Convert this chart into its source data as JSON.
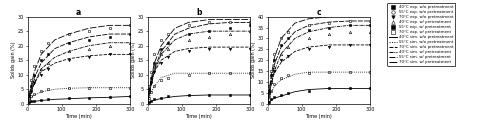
{
  "panel_titles": [
    "a",
    "b",
    "c"
  ],
  "xlabel": "Time (min)",
  "ylabel": "Solids gain (%)",
  "xlim": [
    0,
    300
  ],
  "ylim_a": [
    0,
    30
  ],
  "ylim_b": [
    0,
    30
  ],
  "ylim_c": [
    0,
    40
  ],
  "yticks_a": [
    0,
    5,
    10,
    15,
    20,
    25,
    30
  ],
  "yticks_b": [
    0,
    5,
    10,
    15,
    20,
    25,
    30
  ],
  "yticks_c": [
    0,
    5,
    10,
    15,
    20,
    25,
    30,
    35,
    40
  ],
  "xticks": [
    0,
    100,
    200,
    300
  ],
  "panel_a": {
    "exp_40_wo": {
      "x": [
        0,
        5,
        10,
        20,
        40,
        60,
        120,
        180,
        240,
        300
      ],
      "y": [
        0,
        0.5,
        0.8,
        1.0,
        1.2,
        1.5,
        1.8,
        2.0,
        2.2,
        2.5
      ]
    },
    "exp_55_wo": {
      "x": [
        0,
        5,
        10,
        20,
        40,
        60,
        120,
        180,
        240,
        300
      ],
      "y": [
        0,
        1.5,
        2.5,
        3.5,
        4.5,
        5.0,
        5.5,
        5.5,
        5.5,
        5.5
      ]
    },
    "exp_70_wo": {
      "x": [
        0,
        5,
        10,
        20,
        40,
        60,
        120,
        180,
        240,
        300
      ],
      "y": [
        0,
        2,
        4,
        7,
        10,
        12,
        15,
        16,
        17,
        17
      ]
    },
    "exp_40_w": {
      "x": [
        0,
        5,
        10,
        20,
        40,
        60,
        120,
        180,
        240,
        300
      ],
      "y": [
        0,
        2,
        5,
        8,
        12,
        14,
        18,
        19,
        20,
        21
      ]
    },
    "exp_55_w": {
      "x": [
        0,
        5,
        10,
        20,
        40,
        60,
        120,
        180,
        240,
        300
      ],
      "y": [
        0,
        3,
        6,
        10,
        15,
        17,
        21,
        22,
        23,
        24
      ]
    },
    "exp_70_w": {
      "x": [
        0,
        5,
        10,
        20,
        40,
        60,
        120,
        180,
        240,
        300
      ],
      "y": [
        0,
        4,
        8,
        13,
        18,
        21,
        24,
        25,
        26,
        27
      ]
    },
    "sim_40_wo": {
      "x": [
        0,
        10,
        20,
        40,
        80,
        120,
        180,
        240,
        300
      ],
      "y": [
        0,
        0.5,
        0.8,
        1.1,
        1.5,
        1.7,
        2.0,
        2.2,
        2.5
      ]
    },
    "sim_55_wo": {
      "x": [
        0,
        10,
        20,
        40,
        80,
        120,
        180,
        240,
        300
      ],
      "y": [
        0,
        2.0,
        3.0,
        4.0,
        5.0,
        5.3,
        5.5,
        5.5,
        5.5
      ]
    },
    "sim_70_wo": {
      "x": [
        0,
        10,
        20,
        40,
        80,
        120,
        180,
        240,
        300
      ],
      "y": [
        0,
        4,
        7,
        11,
        14,
        15.5,
        16.5,
        17,
        17
      ]
    },
    "sim_40_w": {
      "x": [
        0,
        10,
        20,
        40,
        80,
        120,
        180,
        240,
        300
      ],
      "y": [
        0,
        4,
        7,
        12,
        16,
        18,
        20,
        21,
        21
      ]
    },
    "sim_55_w": {
      "x": [
        0,
        10,
        20,
        40,
        80,
        120,
        180,
        240,
        300
      ],
      "y": [
        0,
        5,
        9,
        14,
        19,
        21,
        23,
        24,
        24
      ]
    },
    "sim_70_w": {
      "x": [
        0,
        10,
        20,
        40,
        80,
        120,
        180,
        240,
        300
      ],
      "y": [
        0,
        6,
        11,
        17,
        22,
        24,
        26,
        27,
        27
      ]
    }
  },
  "panel_b": {
    "exp_40_wo": {
      "x": [
        0,
        5,
        10,
        20,
        40,
        60,
        120,
        180,
        240,
        300
      ],
      "y": [
        0,
        0.5,
        1.0,
        1.5,
        2.0,
        2.5,
        3.0,
        3.0,
        3.0,
        3.0
      ]
    },
    "exp_55_wo": {
      "x": [
        0,
        5,
        10,
        20,
        40,
        60,
        120,
        180,
        240,
        300
      ],
      "y": [
        0,
        2,
        4,
        6,
        8,
        9,
        10,
        10.5,
        10.5,
        10.5
      ]
    },
    "exp_70_wo": {
      "x": [
        0,
        5,
        10,
        20,
        40,
        60,
        120,
        180,
        240,
        300
      ],
      "y": [
        0,
        4,
        7,
        11,
        14,
        16,
        18,
        19,
        19,
        19
      ]
    },
    "exp_40_w": {
      "x": [
        0,
        5,
        10,
        20,
        40,
        60,
        120,
        180,
        240,
        300
      ],
      "y": [
        0,
        4,
        8,
        13,
        17,
        19,
        22,
        23,
        24,
        25
      ]
    },
    "exp_55_w": {
      "x": [
        0,
        5,
        10,
        20,
        40,
        60,
        120,
        180,
        240,
        300
      ],
      "y": [
        0,
        5,
        9,
        14,
        19,
        21,
        24,
        25,
        26,
        27
      ]
    },
    "exp_70_w": {
      "x": [
        0,
        5,
        10,
        20,
        40,
        60,
        120,
        180,
        240,
        300
      ],
      "y": [
        0,
        6,
        11,
        17,
        22,
        24,
        27,
        28,
        28,
        28
      ]
    },
    "sim_40_wo": {
      "x": [
        0,
        10,
        20,
        40,
        80,
        120,
        180,
        240,
        300
      ],
      "y": [
        0,
        0.8,
        1.2,
        1.8,
        2.5,
        2.8,
        3.0,
        3.0,
        3.0
      ]
    },
    "sim_55_wo": {
      "x": [
        0,
        10,
        20,
        40,
        80,
        120,
        180,
        240,
        300
      ],
      "y": [
        0,
        4,
        6,
        9,
        10.5,
        10.5,
        10.5,
        10.5,
        10.5
      ]
    },
    "sim_70_wo": {
      "x": [
        0,
        10,
        20,
        40,
        80,
        120,
        180,
        240,
        300
      ],
      "y": [
        0,
        7,
        11,
        15,
        18,
        19,
        19.5,
        19.5,
        19.5
      ]
    },
    "sim_40_w": {
      "x": [
        0,
        10,
        20,
        40,
        80,
        120,
        180,
        240,
        300
      ],
      "y": [
        0,
        6,
        11,
        17,
        22,
        24,
        25,
        25,
        25
      ]
    },
    "sim_55_w": {
      "x": [
        0,
        10,
        20,
        40,
        80,
        120,
        180,
        240,
        300
      ],
      "y": [
        0,
        7,
        12,
        18,
        24,
        26,
        27.5,
        28,
        28
      ]
    },
    "sim_70_w": {
      "x": [
        0,
        10,
        20,
        40,
        80,
        120,
        180,
        240,
        300
      ],
      "y": [
        0,
        8,
        14,
        20,
        26,
        28,
        29,
        29,
        29
      ]
    }
  },
  "panel_c": {
    "exp_40_wo": {
      "x": [
        0,
        5,
        10,
        20,
        40,
        60,
        120,
        180,
        240,
        300
      ],
      "y": [
        0,
        1,
        2,
        3,
        4,
        5,
        6,
        7,
        7,
        7
      ]
    },
    "exp_55_wo": {
      "x": [
        0,
        5,
        10,
        20,
        40,
        60,
        120,
        180,
        240,
        300
      ],
      "y": [
        0,
        3,
        6,
        9,
        12,
        13,
        14,
        14.5,
        14.5,
        14.5
      ]
    },
    "exp_70_wo": {
      "x": [
        0,
        5,
        10,
        20,
        40,
        60,
        120,
        180,
        240,
        300
      ],
      "y": [
        0,
        5,
        10,
        15,
        20,
        22,
        25,
        26,
        27,
        27
      ]
    },
    "exp_40_w": {
      "x": [
        0,
        5,
        10,
        20,
        40,
        60,
        120,
        180,
        240,
        300
      ],
      "y": [
        0,
        5,
        10,
        17,
        23,
        26,
        30,
        32,
        33,
        33
      ]
    },
    "exp_55_w": {
      "x": [
        0,
        5,
        10,
        20,
        40,
        60,
        120,
        180,
        240,
        300
      ],
      "y": [
        0,
        6,
        13,
        20,
        27,
        30,
        34,
        35,
        36,
        36
      ]
    },
    "exp_70_w": {
      "x": [
        0,
        5,
        10,
        20,
        40,
        60,
        120,
        180,
        240,
        300
      ],
      "y": [
        0,
        8,
        15,
        23,
        30,
        33,
        36,
        37,
        38,
        38
      ]
    },
    "sim_40_wo": {
      "x": [
        0,
        10,
        20,
        40,
        80,
        120,
        180,
        240,
        300
      ],
      "y": [
        0,
        1.5,
        2.5,
        3.5,
        5.5,
        6.5,
        7.0,
        7.0,
        7.0
      ]
    },
    "sim_55_wo": {
      "x": [
        0,
        10,
        20,
        40,
        80,
        120,
        180,
        240,
        300
      ],
      "y": [
        0,
        5,
        8,
        11,
        13.5,
        14.5,
        14.5,
        14.5,
        14.5
      ]
    },
    "sim_70_wo": {
      "x": [
        0,
        10,
        20,
        40,
        80,
        120,
        180,
        240,
        300
      ],
      "y": [
        0,
        9,
        14,
        19,
        24,
        26,
        27,
        27,
        27
      ]
    },
    "sim_40_w": {
      "x": [
        0,
        10,
        20,
        40,
        80,
        120,
        180,
        240,
        300
      ],
      "y": [
        0,
        8,
        15,
        23,
        30,
        33,
        35,
        36,
        36
      ]
    },
    "sim_55_w": {
      "x": [
        0,
        10,
        20,
        40,
        80,
        120,
        180,
        240,
        300
      ],
      "y": [
        0,
        10,
        18,
        26,
        33,
        36,
        37.5,
        38,
        38
      ]
    },
    "sim_70_w": {
      "x": [
        0,
        10,
        20,
        40,
        80,
        120,
        180,
        240,
        300
      ],
      "y": [
        0,
        12,
        21,
        30,
        37,
        39,
        40,
        40,
        40
      ]
    }
  },
  "legend_labels": [
    "40°C exp. w/o pretreatment",
    "55°C exp. w/o pretreatment",
    "70°C exp. w/o pretreatment",
    "40°C exp. w/ pretreatment",
    "55°C exp. w/ pretreatment",
    "70°C exp. w/ pretreatment",
    "40°C sim. w/o pretreatment",
    "55°C sim. w/o pretreatment",
    "70°C sim. w/o pretreatment",
    "40°C sim. w/ pretreatment",
    "55°C sim. w/ pretreatment",
    "70°C sim. w/ pretreatment"
  ]
}
